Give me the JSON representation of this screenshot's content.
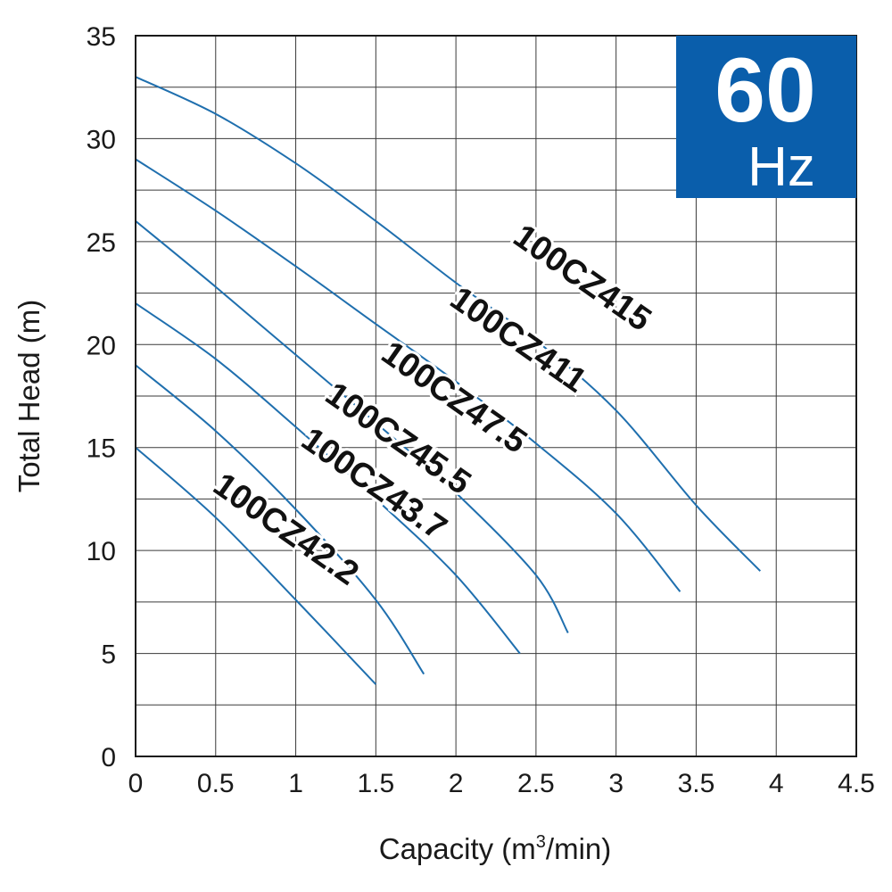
{
  "chart_data": {
    "type": "line",
    "xlabel": "Capacity (m³/min)",
    "xlabel_main": "Capacity (m",
    "xlabel_sup": "3",
    "xlabel_tail": "/min)",
    "ylabel": "Total Head (m)",
    "xlim": [
      0,
      4.5
    ],
    "ylim": [
      0,
      35
    ],
    "x_ticks": [
      "0",
      "0.5",
      "1",
      "1.5",
      "2",
      "2.5",
      "3",
      "3.5",
      "4",
      "4.5"
    ],
    "y_ticks": [
      "0",
      "5",
      "10",
      "15",
      "20",
      "25",
      "30",
      "35"
    ],
    "grid": true,
    "frequency_badge": {
      "value": "60",
      "unit": "Hz",
      "color": "#0a5eab"
    },
    "line_color": "#1f6fae",
    "series": [
      {
        "name": "100CZ415",
        "points": [
          [
            0,
            33
          ],
          [
            0.5,
            31.2
          ],
          [
            1,
            28.8
          ],
          [
            1.5,
            26
          ],
          [
            2,
            23
          ],
          [
            2.5,
            20.2
          ],
          [
            3,
            16.8
          ],
          [
            3.5,
            12.2
          ],
          [
            3.9,
            9
          ]
        ]
      },
      {
        "name": "100CZ411",
        "points": [
          [
            0,
            29
          ],
          [
            0.5,
            26.5
          ],
          [
            1,
            23.8
          ],
          [
            1.5,
            21
          ],
          [
            2,
            18.2
          ],
          [
            2.5,
            15.2
          ],
          [
            3,
            11.8
          ],
          [
            3.4,
            8
          ]
        ]
      },
      {
        "name": "100CZ47.5",
        "points": [
          [
            0,
            26
          ],
          [
            0.5,
            22.8
          ],
          [
            1,
            19.5
          ],
          [
            1.5,
            16.2
          ],
          [
            2,
            12.8
          ],
          [
            2.5,
            8.8
          ],
          [
            2.7,
            6
          ]
        ]
      },
      {
        "name": "100CZ45.5",
        "points": [
          [
            0,
            22
          ],
          [
            0.5,
            19.3
          ],
          [
            1,
            16
          ],
          [
            1.5,
            12.5
          ],
          [
            2,
            8.8
          ],
          [
            2.4,
            5
          ]
        ]
      },
      {
        "name": "100CZ43.7",
        "points": [
          [
            0,
            19
          ],
          [
            0.5,
            15.8
          ],
          [
            1,
            12
          ],
          [
            1.5,
            7.6
          ],
          [
            1.8,
            4
          ]
        ]
      },
      {
        "name": "100CZ42.2",
        "points": [
          [
            0,
            15
          ],
          [
            0.5,
            11.6
          ],
          [
            1,
            7.6
          ],
          [
            1.5,
            3.5
          ]
        ]
      }
    ]
  }
}
